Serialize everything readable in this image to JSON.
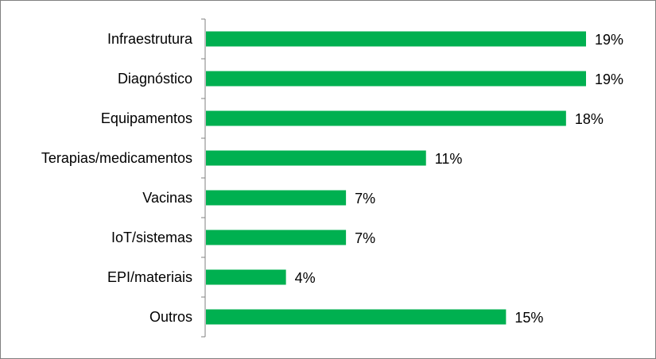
{
  "chart_data": {
    "type": "bar",
    "orientation": "horizontal",
    "title": "",
    "xlabel": "",
    "ylabel": "",
    "categories": [
      "Infraestrutura",
      "Diagnóstico",
      "Equipamentos",
      "Terapias/medicamentos",
      "Vacinas",
      "IoT/sistemas",
      "EPI/materiais",
      "Outros"
    ],
    "values": [
      19,
      19,
      18,
      11,
      7,
      7,
      4,
      15
    ],
    "value_labels": [
      "19%",
      "19%",
      "18%",
      "11%",
      "7%",
      "7%",
      "4%",
      "15%"
    ],
    "unit": "%",
    "xlim": [
      0,
      20
    ],
    "grid": false,
    "legend": "none",
    "bar_color": "#00B050",
    "axis_color": "#808080"
  }
}
